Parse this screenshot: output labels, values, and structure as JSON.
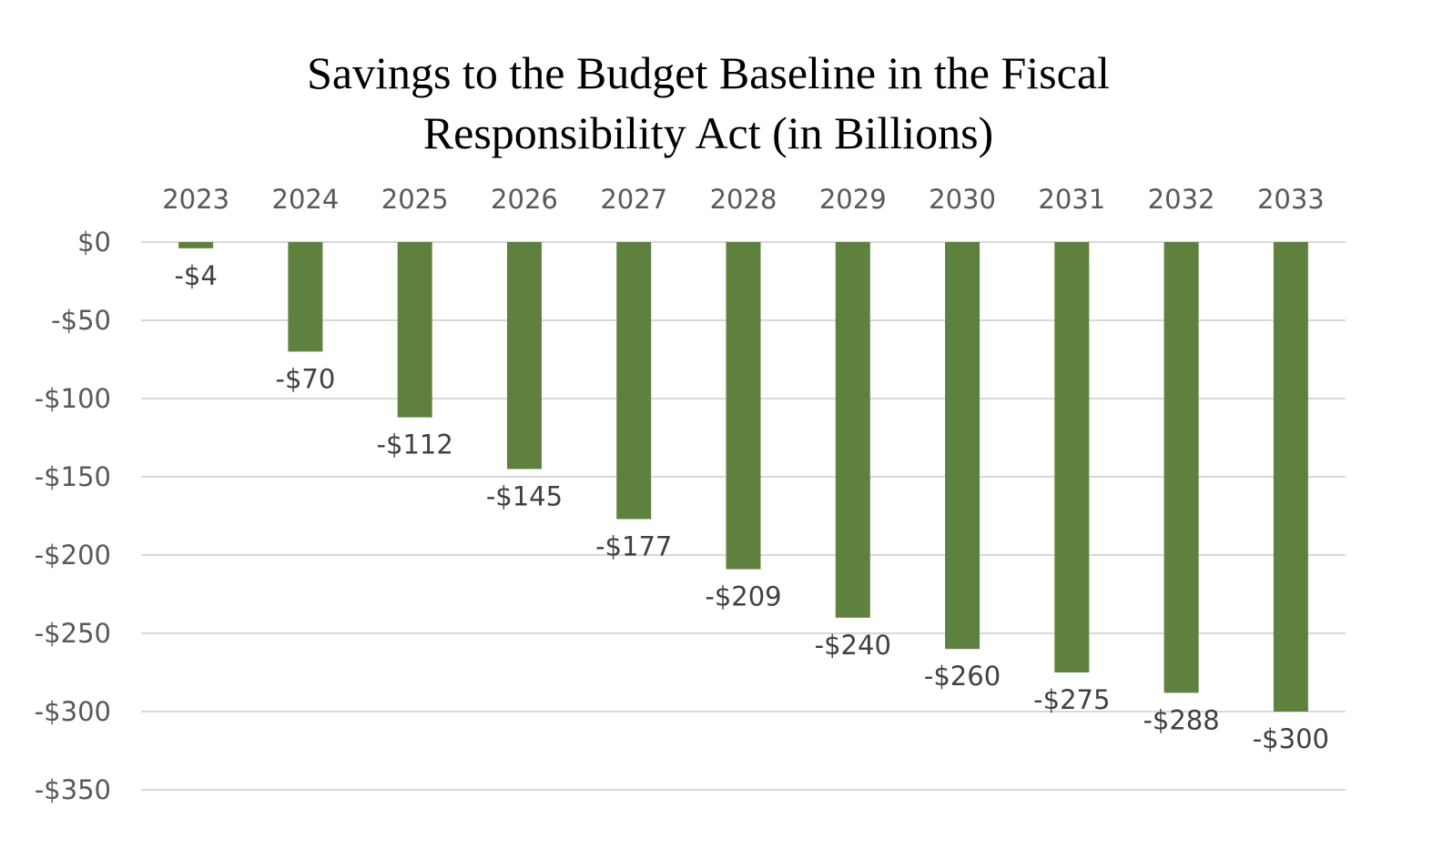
{
  "chart_data": {
    "type": "bar",
    "title": "Savings to the Budget Baseline in the Fiscal Responsibility Act (in Billions)",
    "title_lines": [
      "Savings to the Budget Baseline in the Fiscal",
      "Responsibility Act (in Billions)"
    ],
    "categories": [
      "2023",
      "2024",
      "2025",
      "2026",
      "2027",
      "2028",
      "2029",
      "2030",
      "2031",
      "2032",
      "2033"
    ],
    "values": [
      -4,
      -70,
      -112,
      -145,
      -177,
      -209,
      -240,
      -260,
      -275,
      -288,
      -300
    ],
    "data_labels": [
      "-$4",
      "-$70",
      "-$112",
      "-$145",
      "-$177",
      "-$209",
      "-$240",
      "-$260",
      "-$275",
      "-$288",
      "-$300"
    ],
    "y_ticks": [
      0,
      -50,
      -100,
      -150,
      -200,
      -250,
      -300,
      -350
    ],
    "y_tick_labels": [
      "$0",
      "-$50",
      "-$100",
      "-$150",
      "-$200",
      "-$250",
      "-$300",
      "-$350"
    ],
    "ylim": [
      -350,
      0
    ],
    "xlabel": "",
    "ylabel": "",
    "x_axis_position": "top",
    "grid": true,
    "legend": "none",
    "colors": {
      "bar": "#5f813f",
      "gridline": "#d9d9d9",
      "tick_text": "#595959",
      "label_text": "#404040"
    }
  }
}
